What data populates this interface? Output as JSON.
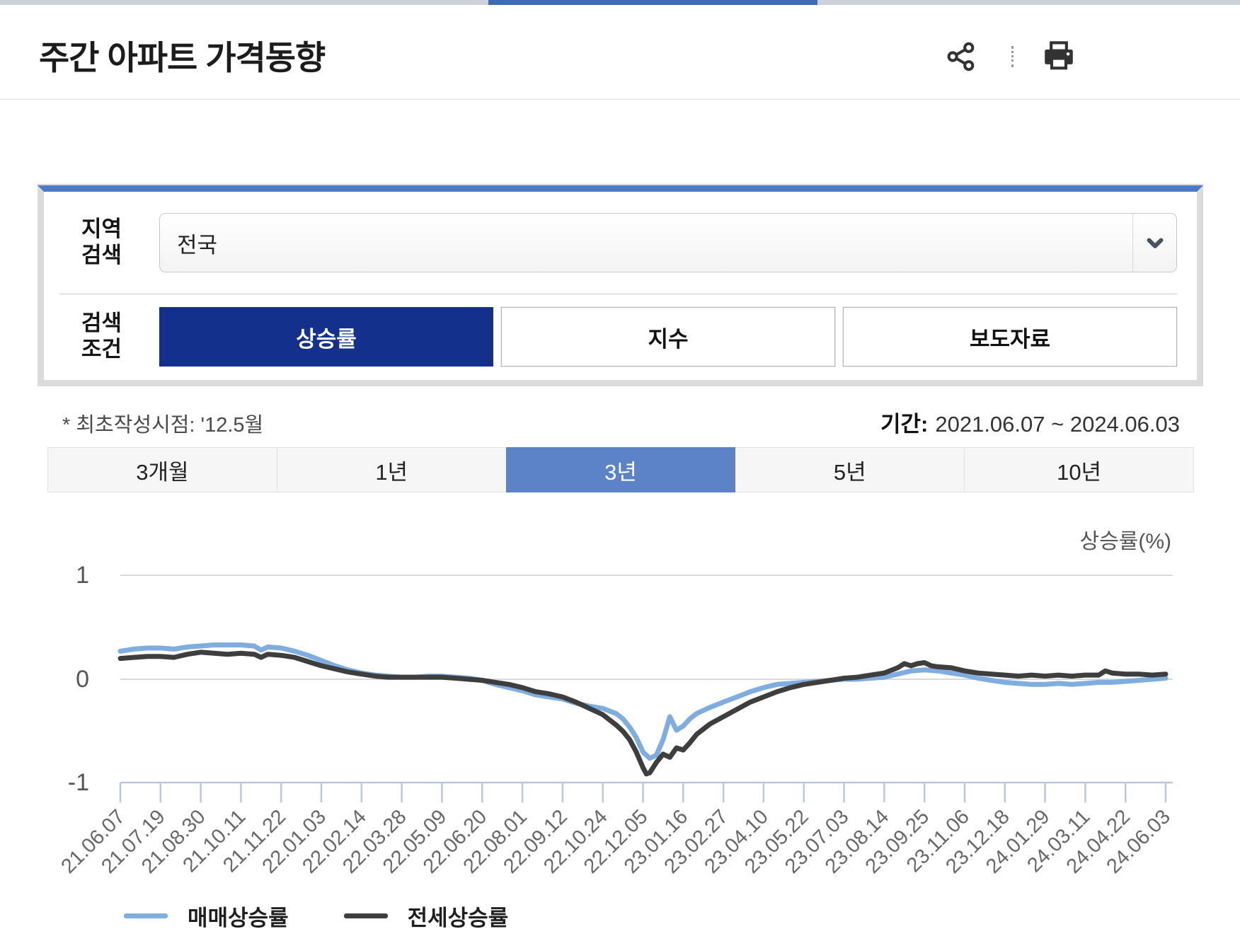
{
  "page": {
    "title": "주간 아파트 가격동향"
  },
  "filter_panel": {
    "region_label": {
      "line1": "지역",
      "line2": "검색"
    },
    "region_value": "전국",
    "condition_label": {
      "line1": "검색",
      "line2": "조건"
    },
    "condition_buttons": [
      {
        "label": "상승률",
        "selected": true
      },
      {
        "label": "지수",
        "selected": false
      },
      {
        "label": "보도자료",
        "selected": false
      }
    ]
  },
  "meta": {
    "note": "* 최초작성시점: '12.5월",
    "period_label": "기간:",
    "period_value": "2021.06.07 ~ 2024.06.03"
  },
  "range_tabs": [
    {
      "label": "3개월",
      "selected": false
    },
    {
      "label": "1년",
      "selected": false
    },
    {
      "label": "3년",
      "selected": true
    },
    {
      "label": "5년",
      "selected": false
    },
    {
      "label": "10년",
      "selected": false
    }
  ],
  "chart_data": {
    "type": "line",
    "unit_label": "상승률(%)",
    "ylabel": "상승률(%)",
    "ylim": [
      -1,
      1
    ],
    "y_ticks": [
      1,
      0,
      -1
    ],
    "grid": "horizontal",
    "legend_position": "bottom-left",
    "x_weeks_span": 156,
    "x_tick_weeks": [
      0,
      6,
      12,
      18,
      24,
      30,
      36,
      42,
      48,
      54,
      60,
      66,
      72,
      78,
      84,
      90,
      96,
      102,
      108,
      114,
      120,
      126,
      132,
      138,
      144,
      150,
      156
    ],
    "x_tick_labels": [
      "21.06.07",
      "21.07.19",
      "21.08.30",
      "21.10.11",
      "21.11.22",
      "22.01.03",
      "22.02.14",
      "22.03.28",
      "22.05.09",
      "22.06.20",
      "22.08.01",
      "22.09.12",
      "22.10.24",
      "22.12.05",
      "23.01.16",
      "23.02.27",
      "23.04.10",
      "23.05.22",
      "23.07.03",
      "23.08.14",
      "23.09.25",
      "23.11.06",
      "23.12.18",
      "24.01.29",
      "24.03.11",
      "24.04.22",
      "24.06.03"
    ],
    "series": [
      {
        "name": "매매상승률",
        "color": "#7FADDF",
        "points": [
          [
            0,
            0.27
          ],
          [
            2,
            0.29
          ],
          [
            4,
            0.3
          ],
          [
            6,
            0.3
          ],
          [
            8,
            0.29
          ],
          [
            10,
            0.31
          ],
          [
            12,
            0.32
          ],
          [
            14,
            0.33
          ],
          [
            16,
            0.33
          ],
          [
            18,
            0.33
          ],
          [
            20,
            0.32
          ],
          [
            21,
            0.28
          ],
          [
            22,
            0.31
          ],
          [
            24,
            0.3
          ],
          [
            26,
            0.27
          ],
          [
            28,
            0.23
          ],
          [
            30,
            0.18
          ],
          [
            32,
            0.13
          ],
          [
            34,
            0.09
          ],
          [
            36,
            0.06
          ],
          [
            38,
            0.04
          ],
          [
            40,
            0.03
          ],
          [
            42,
            0.02
          ],
          [
            44,
            0.02
          ],
          [
            46,
            0.03
          ],
          [
            48,
            0.03
          ],
          [
            50,
            0.02
          ],
          [
            52,
            0.01
          ],
          [
            54,
            -0.01
          ],
          [
            56,
            -0.05
          ],
          [
            58,
            -0.08
          ],
          [
            60,
            -0.11
          ],
          [
            62,
            -0.15
          ],
          [
            64,
            -0.17
          ],
          [
            66,
            -0.19
          ],
          [
            68,
            -0.23
          ],
          [
            70,
            -0.26
          ],
          [
            72,
            -0.28
          ],
          [
            74,
            -0.33
          ],
          [
            75,
            -0.38
          ],
          [
            76,
            -0.46
          ],
          [
            77,
            -0.56
          ],
          [
            78,
            -0.7
          ],
          [
            79,
            -0.76
          ],
          [
            80,
            -0.73
          ],
          [
            81,
            -0.58
          ],
          [
            82,
            -0.36
          ],
          [
            83,
            -0.49
          ],
          [
            84,
            -0.45
          ],
          [
            85,
            -0.38
          ],
          [
            86,
            -0.33
          ],
          [
            88,
            -0.27
          ],
          [
            90,
            -0.22
          ],
          [
            92,
            -0.17
          ],
          [
            94,
            -0.12
          ],
          [
            96,
            -0.08
          ],
          [
            98,
            -0.05
          ],
          [
            100,
            -0.04
          ],
          [
            102,
            -0.03
          ],
          [
            104,
            -0.02
          ],
          [
            106,
            -0.01
          ],
          [
            108,
            0.0
          ],
          [
            110,
            0.0
          ],
          [
            112,
            0.01
          ],
          [
            114,
            0.02
          ],
          [
            116,
            0.05
          ],
          [
            118,
            0.08
          ],
          [
            120,
            0.09
          ],
          [
            122,
            0.08
          ],
          [
            124,
            0.06
          ],
          [
            126,
            0.04
          ],
          [
            128,
            0.01
          ],
          [
            130,
            -0.01
          ],
          [
            132,
            -0.03
          ],
          [
            134,
            -0.04
          ],
          [
            136,
            -0.05
          ],
          [
            138,
            -0.05
          ],
          [
            140,
            -0.04
          ],
          [
            142,
            -0.05
          ],
          [
            144,
            -0.04
          ],
          [
            146,
            -0.03
          ],
          [
            148,
            -0.03
          ],
          [
            150,
            -0.02
          ],
          [
            152,
            -0.01
          ],
          [
            154,
            0.0
          ],
          [
            156,
            0.01
          ]
        ]
      },
      {
        "name": "전세상승률",
        "color": "#3E3E3E",
        "points": [
          [
            0,
            0.2
          ],
          [
            2,
            0.21
          ],
          [
            4,
            0.22
          ],
          [
            6,
            0.22
          ],
          [
            8,
            0.21
          ],
          [
            10,
            0.24
          ],
          [
            12,
            0.26
          ],
          [
            14,
            0.25
          ],
          [
            16,
            0.24
          ],
          [
            18,
            0.25
          ],
          [
            20,
            0.24
          ],
          [
            21,
            0.21
          ],
          [
            22,
            0.24
          ],
          [
            24,
            0.23
          ],
          [
            26,
            0.21
          ],
          [
            28,
            0.17
          ],
          [
            30,
            0.13
          ],
          [
            32,
            0.1
          ],
          [
            34,
            0.07
          ],
          [
            36,
            0.05
          ],
          [
            38,
            0.03
          ],
          [
            40,
            0.02
          ],
          [
            42,
            0.02
          ],
          [
            44,
            0.02
          ],
          [
            46,
            0.02
          ],
          [
            48,
            0.02
          ],
          [
            50,
            0.01
          ],
          [
            52,
            0.0
          ],
          [
            54,
            -0.01
          ],
          [
            56,
            -0.03
          ],
          [
            58,
            -0.05
          ],
          [
            60,
            -0.08
          ],
          [
            62,
            -0.12
          ],
          [
            64,
            -0.14
          ],
          [
            66,
            -0.17
          ],
          [
            68,
            -0.22
          ],
          [
            70,
            -0.28
          ],
          [
            72,
            -0.34
          ],
          [
            74,
            -0.44
          ],
          [
            75,
            -0.5
          ],
          [
            76,
            -0.58
          ],
          [
            77,
            -0.7
          ],
          [
            78,
            -0.85
          ],
          [
            78.5,
            -0.91
          ],
          [
            79,
            -0.9
          ],
          [
            80,
            -0.8
          ],
          [
            81,
            -0.72
          ],
          [
            82,
            -0.75
          ],
          [
            83,
            -0.66
          ],
          [
            84,
            -0.68
          ],
          [
            85,
            -0.61
          ],
          [
            86,
            -0.53
          ],
          [
            88,
            -0.43
          ],
          [
            90,
            -0.36
          ],
          [
            92,
            -0.29
          ],
          [
            94,
            -0.22
          ],
          [
            96,
            -0.17
          ],
          [
            98,
            -0.12
          ],
          [
            100,
            -0.08
          ],
          [
            102,
            -0.05
          ],
          [
            104,
            -0.03
          ],
          [
            106,
            -0.01
          ],
          [
            108,
            0.01
          ],
          [
            110,
            0.02
          ],
          [
            112,
            0.04
          ],
          [
            114,
            0.06
          ],
          [
            116,
            0.11
          ],
          [
            117,
            0.15
          ],
          [
            118,
            0.13
          ],
          [
            119,
            0.15
          ],
          [
            120,
            0.16
          ],
          [
            121,
            0.13
          ],
          [
            122,
            0.12
          ],
          [
            124,
            0.11
          ],
          [
            126,
            0.08
          ],
          [
            128,
            0.06
          ],
          [
            130,
            0.05
          ],
          [
            132,
            0.04
          ],
          [
            134,
            0.03
          ],
          [
            136,
            0.04
          ],
          [
            138,
            0.03
          ],
          [
            140,
            0.04
          ],
          [
            142,
            0.03
          ],
          [
            144,
            0.04
          ],
          [
            146,
            0.04
          ],
          [
            147,
            0.08
          ],
          [
            148,
            0.06
          ],
          [
            150,
            0.05
          ],
          [
            152,
            0.05
          ],
          [
            154,
            0.04
          ],
          [
            156,
            0.05
          ]
        ]
      }
    ]
  }
}
